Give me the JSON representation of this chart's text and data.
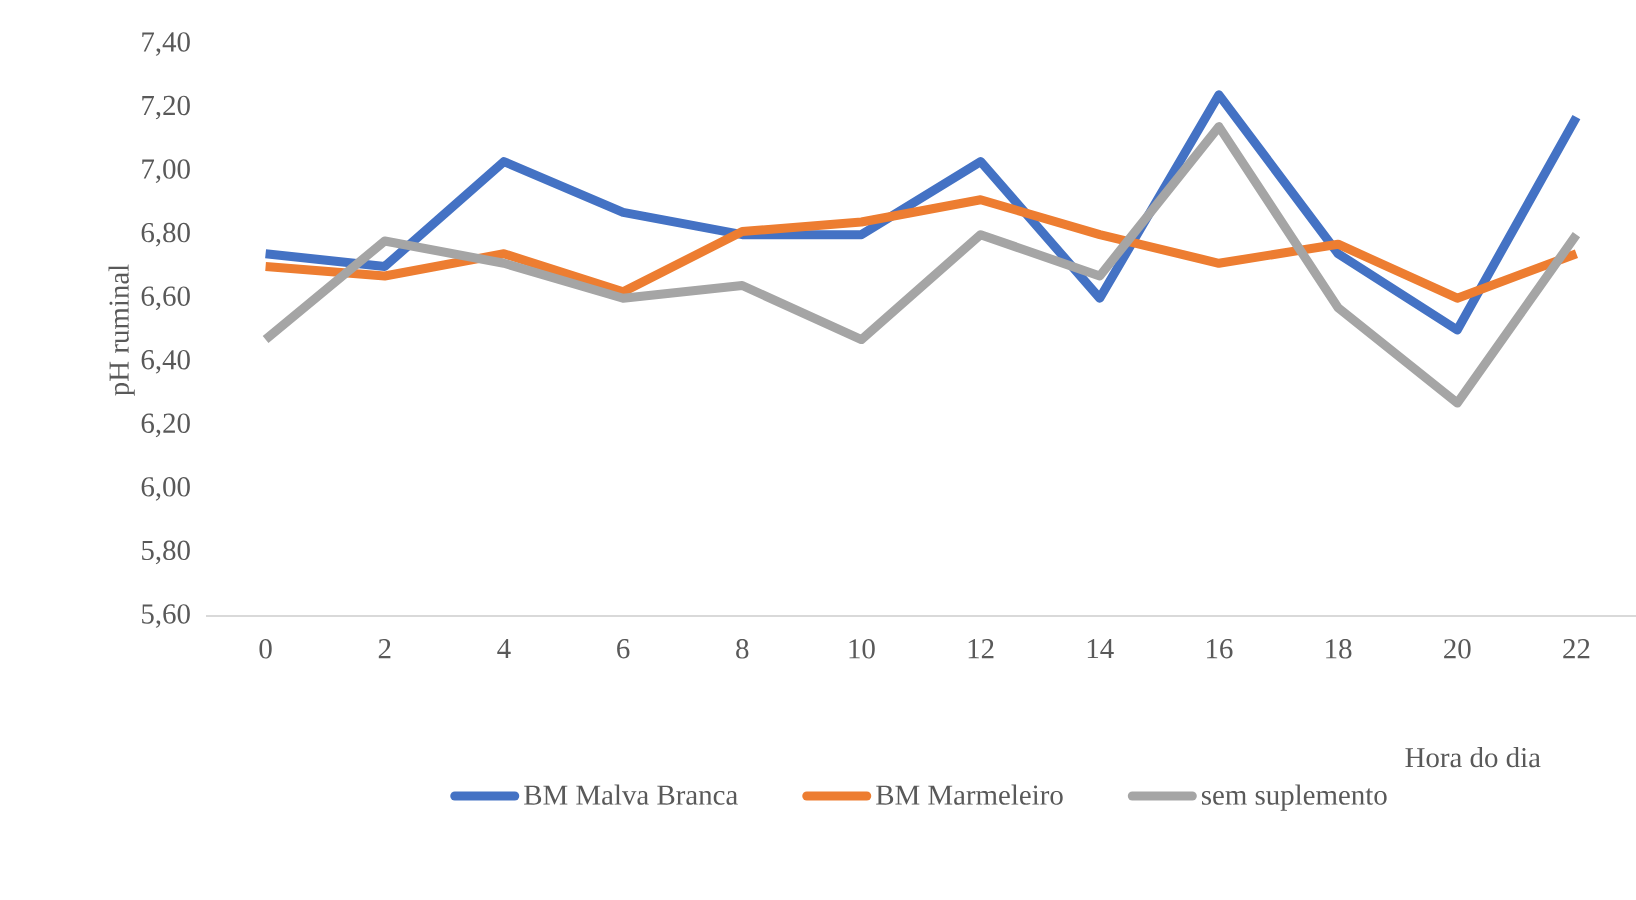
{
  "chart_data": {
    "type": "line",
    "xlabel": "Hora do dia",
    "ylabel": "pH ruminal",
    "categories": [
      "0",
      "2",
      "4",
      "6",
      "8",
      "10",
      "12",
      "14",
      "16",
      "18",
      "20",
      "22"
    ],
    "series": [
      {
        "name": "BM Malva Branca",
        "color": "#4472c4",
        "values": [
          6.74,
          6.7,
          7.03,
          6.87,
          6.8,
          6.8,
          7.03,
          6.6,
          7.24,
          6.74,
          6.5,
          7.17
        ]
      },
      {
        "name": "BM Marmeleiro",
        "color": "#ed7d31",
        "values": [
          6.7,
          6.67,
          6.74,
          6.62,
          6.81,
          6.84,
          6.91,
          6.8,
          6.71,
          6.77,
          6.6,
          6.74
        ]
      },
      {
        "name": "sem suplemento",
        "color": "#a5a5a5",
        "values": [
          6.47,
          6.78,
          6.71,
          6.6,
          6.64,
          6.47,
          6.8,
          6.67,
          7.14,
          6.57,
          6.27,
          6.8
        ]
      }
    ],
    "ylim": [
      5.6,
      7.4
    ],
    "yticks": [
      {
        "value": 5.6,
        "label": "5,60"
      },
      {
        "value": 5.8,
        "label": "5,80"
      },
      {
        "value": 6.0,
        "label": "6,00"
      },
      {
        "value": 6.2,
        "label": "6,20"
      },
      {
        "value": 6.4,
        "label": "6,40"
      },
      {
        "value": 6.6,
        "label": "6,60"
      },
      {
        "value": 6.8,
        "label": "6,80"
      },
      {
        "value": 7.0,
        "label": "7,00"
      },
      {
        "value": 7.2,
        "label": "7,20"
      },
      {
        "value": 7.4,
        "label": "7,40"
      }
    ],
    "legend": "bottom",
    "marker": "none",
    "line_style": "solid"
  }
}
